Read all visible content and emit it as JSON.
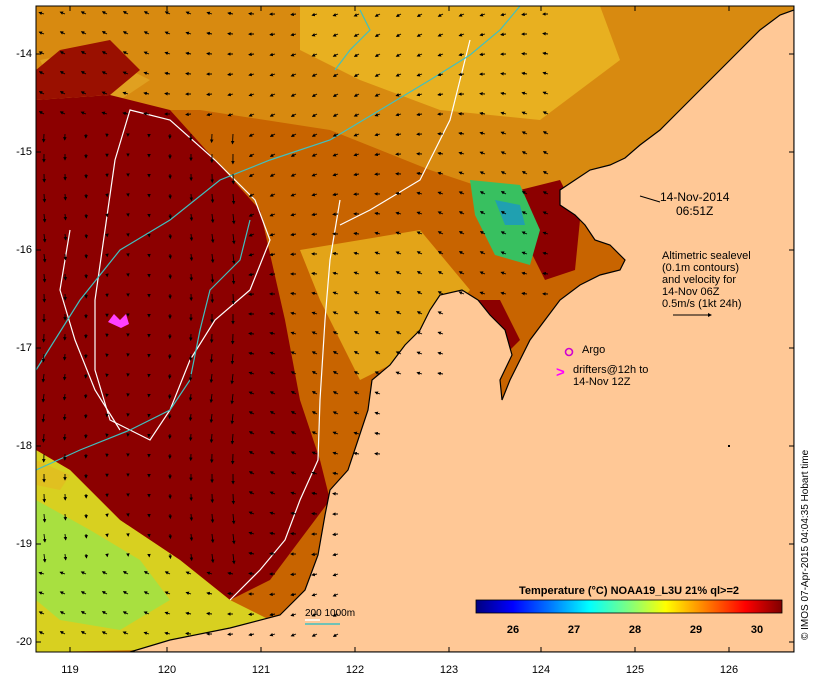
{
  "map": {
    "lon_range": [
      118.65,
      126.7
    ],
    "lat_range": [
      -20.1,
      -13.6
    ],
    "x_ticks": [
      "119",
      "120",
      "121",
      "122",
      "123",
      "124",
      "125",
      "126"
    ],
    "y_ticks": [
      "-14",
      "-15",
      "-16",
      "-17",
      "-18",
      "-19",
      "-20"
    ],
    "land_color": "#ffc896",
    "date_label": "14-Nov-2014",
    "time_label": "06:51Z",
    "altimetry_text": [
      "Altimetric sealevel",
      "(0.1m contours)",
      "and velocity for",
      "14-Nov 06Z",
      "0.5m/s (1kt 24h)"
    ],
    "argo_label": "Argo",
    "argo_color": "#d000d0",
    "drifter_symbol": ">",
    "drifter_text": [
      "drifters@12h to",
      "14-Nov 12Z"
    ],
    "drifter_color": "#ff00ff",
    "depth_contour_label": "200  1000m",
    "depth_contour_colors": [
      "#ffffff",
      "#40c0c0"
    ],
    "credit": "© IMOS 07-Apr-2015 04:04:35 Hobart time"
  },
  "colorbar": {
    "title": "Temperature (°C) NOAA19_L3U 21% ql>=2",
    "ticks": [
      "26",
      "27",
      "28",
      "29",
      "30"
    ],
    "colors": [
      "#00007f",
      "#0000ff",
      "#007fff",
      "#00ffff",
      "#7fff7f",
      "#ffff00",
      "#ff7f00",
      "#ff0000",
      "#7f0000"
    ]
  }
}
